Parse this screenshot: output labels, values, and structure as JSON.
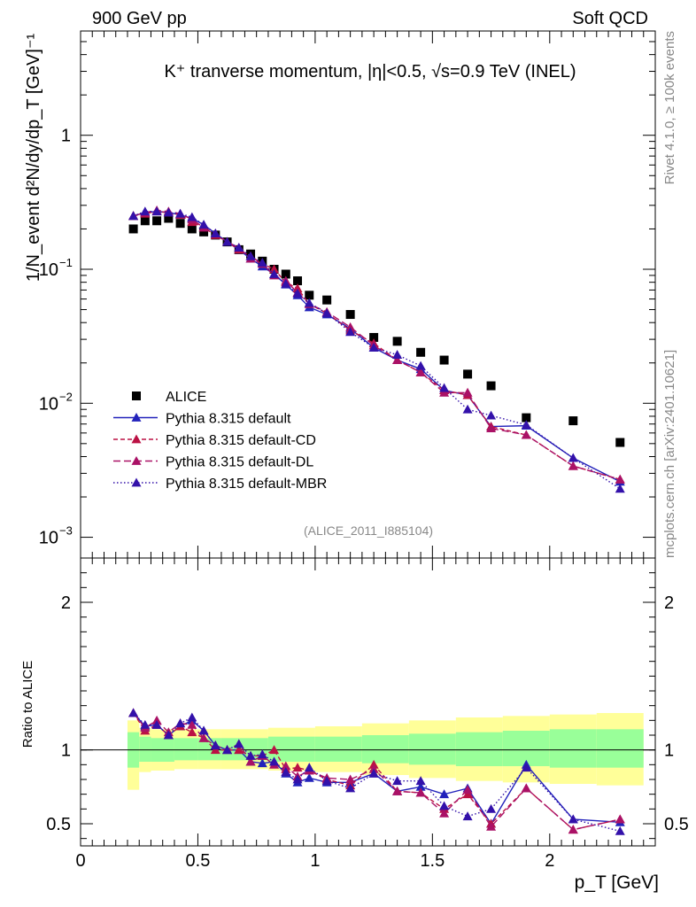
{
  "header": {
    "left": "900 GeV pp",
    "right": "Soft QCD"
  },
  "side": {
    "rivet": "Rivet 4.1.0, ≥ 100k events",
    "mcplots": "mcplots.cern.ch [arXiv:2401.10621]"
  },
  "colors": {
    "alice": "#000000",
    "default": "#2222bb",
    "cd": "#bb1144",
    "dl": "#aa1166",
    "mbr": "#3311aa",
    "band_inner": "#99ff99",
    "band_outer": "#ffff99"
  },
  "chart_data": [
    {
      "type": "scatter",
      "name": "main",
      "title": "K⁺ tranverse momentum, |η|<0.5, √s=0.9 TeV (INEL)",
      "ylabel": "1/N_event d²N/dy/dp_T [GeV]⁻¹",
      "xlabel": "",
      "annotation": "(ALICE_2011_I885104)",
      "xlim": [
        0,
        2.45
      ],
      "ylim": [
        0.0007,
        6
      ],
      "yscale": "log",
      "yticks": [
        {
          "value": 1,
          "label": "1",
          "exp": ""
        },
        {
          "value": 0.1,
          "label": "10",
          "exp": "−1"
        },
        {
          "value": 0.01,
          "label": "10",
          "exp": "−2"
        },
        {
          "value": 0.001,
          "label": "10",
          "exp": "−3"
        }
      ],
      "legend": [
        {
          "label": "ALICE",
          "key": "alice"
        },
        {
          "label": "Pythia 8.315 default",
          "key": "default"
        },
        {
          "label": "Pythia 8.315 default-CD",
          "key": "cd"
        },
        {
          "label": "Pythia 8.315 default-DL",
          "key": "dl"
        },
        {
          "label": "Pythia 8.315 default-MBR",
          "key": "mbr"
        }
      ],
      "x": [
        0.225,
        0.275,
        0.325,
        0.375,
        0.425,
        0.475,
        0.525,
        0.575,
        0.625,
        0.675,
        0.725,
        0.775,
        0.825,
        0.875,
        0.925,
        0.975,
        1.05,
        1.15,
        1.25,
        1.35,
        1.45,
        1.55,
        1.65,
        1.75,
        1.9,
        2.1,
        2.3
      ],
      "series": [
        {
          "name": "ALICE",
          "key": "alice",
          "values": [
            0.2,
            0.23,
            0.23,
            0.24,
            0.22,
            0.2,
            0.19,
            0.18,
            0.16,
            0.14,
            0.13,
            0.115,
            0.1,
            0.092,
            0.082,
            0.064,
            0.059,
            0.046,
            0.031,
            0.029,
            0.024,
            0.021,
            0.0165,
            0.0135,
            0.0078,
            0.0074,
            0.0051
          ]
        },
        {
          "name": "Pythia 8.315 default",
          "key": "default",
          "values": [
            0.25,
            0.265,
            0.27,
            0.265,
            0.255,
            0.24,
            0.215,
            0.185,
            0.16,
            0.14,
            0.12,
            0.105,
            0.092,
            0.077,
            0.064,
            0.052,
            0.046,
            0.036,
            0.026,
            0.021,
            0.018,
            0.0125,
            0.0115,
            0.0067,
            0.0068,
            0.0039,
            0.0026
          ]
        },
        {
          "name": "Pythia 8.315 default-CD",
          "key": "cd",
          "values": [
            0.25,
            0.26,
            0.27,
            0.265,
            0.255,
            0.225,
            0.205,
            0.18,
            0.16,
            0.14,
            0.125,
            0.11,
            0.1,
            0.08,
            0.072,
            0.055,
            0.047,
            0.035,
            0.028,
            0.021,
            0.017,
            0.0125,
            0.0115,
            0.0067,
            0.0058,
            0.0034,
            0.0027
          ]
        },
        {
          "name": "Pythia 8.315 default-DL",
          "key": "dl",
          "values": [
            0.25,
            0.265,
            0.275,
            0.27,
            0.26,
            0.235,
            0.205,
            0.185,
            0.16,
            0.145,
            0.12,
            0.11,
            0.09,
            0.082,
            0.067,
            0.055,
            0.048,
            0.037,
            0.027,
            0.021,
            0.017,
            0.012,
            0.012,
            0.0065,
            0.0058,
            0.0034,
            0.0027
          ]
        },
        {
          "name": "Pythia 8.315 default-MBR",
          "key": "mbr",
          "values": [
            0.25,
            0.27,
            0.27,
            0.265,
            0.26,
            0.245,
            0.215,
            0.185,
            0.16,
            0.145,
            0.125,
            0.112,
            0.092,
            0.078,
            0.066,
            0.056,
            0.047,
            0.034,
            0.026,
            0.023,
            0.019,
            0.013,
            0.009,
            0.0081,
            0.0069,
            0.0039,
            0.0023
          ]
        }
      ]
    },
    {
      "type": "scatter",
      "name": "ratio",
      "ylabel": "Ratio to ALICE",
      "xlabel": "p_T [GeV]",
      "xlim": [
        0,
        2.45
      ],
      "ylim": [
        0.35,
        2.3
      ],
      "xticks": [
        {
          "value": 0,
          "label": "0"
        },
        {
          "value": 0.5,
          "label": "0.5"
        },
        {
          "value": 1,
          "label": "1"
        },
        {
          "value": 1.5,
          "label": "1.5"
        },
        {
          "value": 2,
          "label": "2"
        }
      ],
      "yticks": [
        {
          "value": 0.5,
          "label": "0.5"
        },
        {
          "value": 1,
          "label": "1"
        },
        {
          "value": 2,
          "label": "2"
        }
      ],
      "band_bins": [
        {
          "x0": 0.2,
          "x1": 0.25,
          "inner": [
            0.88,
            1.12
          ],
          "outer": [
            0.73,
            1.2
          ]
        },
        {
          "x0": 0.25,
          "x1": 0.3,
          "inner": [
            0.92,
            1.09
          ],
          "outer": [
            0.85,
            1.15
          ]
        },
        {
          "x0": 0.3,
          "x1": 0.4,
          "inner": [
            0.92,
            1.08
          ],
          "outer": [
            0.86,
            1.14
          ]
        },
        {
          "x0": 0.4,
          "x1": 0.5,
          "inner": [
            0.93,
            1.08
          ],
          "outer": [
            0.87,
            1.14
          ]
        },
        {
          "x0": 0.5,
          "x1": 0.6,
          "inner": [
            0.93,
            1.08
          ],
          "outer": [
            0.87,
            1.14
          ]
        },
        {
          "x0": 0.6,
          "x1": 0.8,
          "inner": [
            0.93,
            1.08
          ],
          "outer": [
            0.87,
            1.14
          ]
        },
        {
          "x0": 0.8,
          "x1": 1.0,
          "inner": [
            0.92,
            1.09
          ],
          "outer": [
            0.86,
            1.15
          ]
        },
        {
          "x0": 1.0,
          "x1": 1.2,
          "inner": [
            0.92,
            1.09
          ],
          "outer": [
            0.85,
            1.16
          ]
        },
        {
          "x0": 1.2,
          "x1": 1.4,
          "inner": [
            0.91,
            1.1
          ],
          "outer": [
            0.83,
            1.18
          ]
        },
        {
          "x0": 1.4,
          "x1": 1.6,
          "inner": [
            0.9,
            1.11
          ],
          "outer": [
            0.81,
            1.2
          ]
        },
        {
          "x0": 1.6,
          "x1": 1.8,
          "inner": [
            0.89,
            1.12
          ],
          "outer": [
            0.79,
            1.22
          ]
        },
        {
          "x0": 1.8,
          "x1": 2.0,
          "inner": [
            0.89,
            1.13
          ],
          "outer": [
            0.78,
            1.23
          ]
        },
        {
          "x0": 2.0,
          "x1": 2.2,
          "inner": [
            0.88,
            1.14
          ],
          "outer": [
            0.77,
            1.24
          ]
        },
        {
          "x0": 2.2,
          "x1": 2.4,
          "inner": [
            0.88,
            1.14
          ],
          "outer": [
            0.76,
            1.25
          ]
        }
      ],
      "x": [
        0.225,
        0.275,
        0.325,
        0.375,
        0.425,
        0.475,
        0.525,
        0.575,
        0.625,
        0.675,
        0.725,
        0.775,
        0.825,
        0.875,
        0.925,
        0.975,
        1.05,
        1.15,
        1.25,
        1.35,
        1.45,
        1.55,
        1.65,
        1.75,
        1.9,
        2.1,
        2.3
      ],
      "series": [
        {
          "name": "Pythia 8.315 default",
          "key": "default",
          "values": [
            1.25,
            1.16,
            1.17,
            1.1,
            1.16,
            1.2,
            1.13,
            1.03,
            1.0,
            1.0,
            0.92,
            0.91,
            0.92,
            0.84,
            0.78,
            0.81,
            0.78,
            0.78,
            0.84,
            0.72,
            0.75,
            0.7,
            0.74,
            0.5,
            0.9,
            0.53,
            0.51
          ]
        },
        {
          "name": "Pythia 8.315 default-CD",
          "key": "cd",
          "values": [
            1.25,
            1.13,
            1.17,
            1.1,
            1.16,
            1.12,
            1.08,
            1.0,
            1.0,
            1.0,
            0.96,
            0.96,
            1.0,
            0.87,
            0.88,
            0.86,
            0.8,
            0.76,
            0.9,
            0.72,
            0.71,
            0.6,
            0.7,
            0.5,
            0.74,
            0.46,
            0.53
          ]
        },
        {
          "name": "Pythia 8.315 default-DL",
          "key": "dl",
          "values": [
            1.25,
            1.15,
            1.2,
            1.12,
            1.18,
            1.17,
            1.08,
            1.03,
            1.0,
            1.04,
            0.92,
            0.96,
            0.9,
            0.89,
            0.82,
            0.86,
            0.81,
            0.8,
            0.87,
            0.72,
            0.71,
            0.57,
            0.73,
            0.48,
            0.74,
            0.46,
            0.53
          ]
        },
        {
          "name": "Pythia 8.315 default-MBR",
          "key": "mbr",
          "values": [
            1.25,
            1.17,
            1.17,
            1.1,
            1.18,
            1.22,
            1.13,
            1.03,
            1.0,
            1.04,
            0.96,
            0.97,
            0.92,
            0.85,
            0.8,
            0.88,
            0.79,
            0.74,
            0.84,
            0.79,
            0.79,
            0.62,
            0.55,
            0.6,
            0.88,
            0.53,
            0.45
          ]
        }
      ]
    }
  ]
}
